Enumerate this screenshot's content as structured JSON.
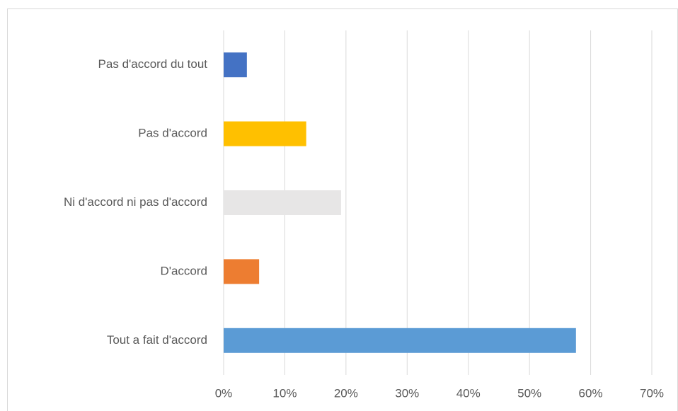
{
  "chart_data": {
    "type": "hbar",
    "categories": [
      "Pas d'accord du tout",
      "Pas d'accord",
      "Ni d'accord ni pas d'accord",
      "D'accord",
      "Tout a fait d'accord"
    ],
    "values": [
      3.8,
      13.5,
      19.2,
      5.8,
      57.6
    ],
    "colors": [
      "#4472c4",
      "#ffc000",
      "#e7e6e6",
      "#ed7d31",
      "#5b9bd5"
    ],
    "xlim": [
      0,
      70
    ],
    "xticks": [
      {
        "value": 0,
        "label": "0%"
      },
      {
        "value": 10,
        "label": "10%"
      },
      {
        "value": 20,
        "label": "20%"
      },
      {
        "value": 30,
        "label": "30%"
      },
      {
        "value": 40,
        "label": "40%"
      },
      {
        "value": 50,
        "label": "50%"
      },
      {
        "value": 60,
        "label": "60%"
      },
      {
        "value": 70,
        "label": "70%"
      }
    ],
    "grid": true
  }
}
